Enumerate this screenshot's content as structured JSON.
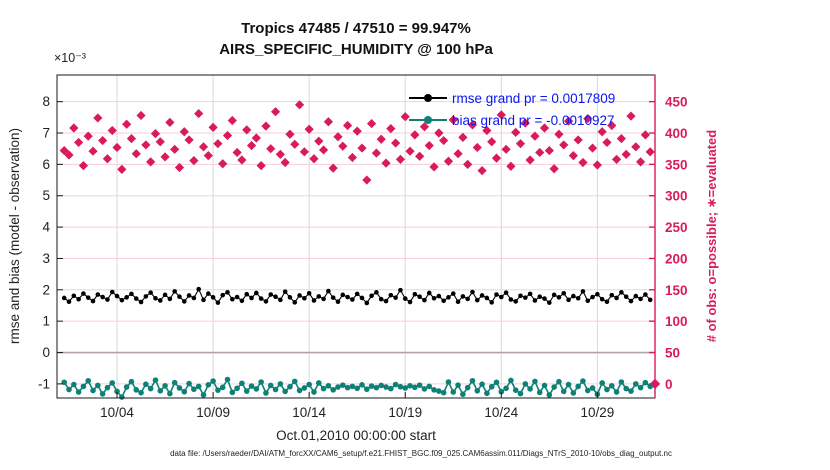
{
  "header": {
    "title_line1": "Tropics 47485 / 47510 = 99.947%",
    "title_line2": "AIRS_SPECIFIC_HUMIDITY @ 100 hPa"
  },
  "footer": {
    "data_file": "data file: /Users/raeder/DAI/ATM_forcXX/CAM6_setup/f.e21.FHIST_BGC.f09_025.CAM6assim.011/Diags_NTrS_2010-10/obs_diag_output.nc"
  },
  "chart_data": {
    "type": "line+scatter dual-axis time evolution",
    "title": "Tropics 47485 / 47510 = 99.947%",
    "subtitle": "AIRS_SPECIFIC_HUMIDITY @ 100 hPa",
    "x_axis": {
      "label": "Oct.01,2010 00:00:00 start",
      "range_days": [
        -0.125,
        31.0
      ],
      "tick_days": [
        3,
        8,
        13,
        18,
        23,
        28
      ],
      "tick_labels": [
        "10/04",
        "10/09",
        "10/14",
        "10/19",
        "10/24",
        "10/29"
      ],
      "grid": true
    },
    "y_left": {
      "label": "rmse and bias (model - observation)",
      "multiplier": "×10⁻³",
      "range": [
        -1.45,
        8.85
      ],
      "ticks": [
        -1,
        0,
        1,
        2,
        3,
        4,
        5,
        6,
        7,
        8
      ],
      "zero_line": true
    },
    "y_right": {
      "label": "# of obs: o=possible; ∗=evaluated",
      "ticks": [
        0,
        50,
        100,
        150,
        200,
        250,
        300,
        350,
        400,
        450
      ],
      "maps_to_left": "left_value = right_value/50 - 1"
    },
    "legend": {
      "position": "top-right-inside",
      "entries": [
        {
          "name": "rmse",
          "label": "rmse grand pr = 0.0017809",
          "color": "#000000",
          "marker": "dot-on-line"
        },
        {
          "name": "bias",
          "label": "bias grand pr = -0.0010927",
          "color": "#0e8177",
          "marker": "dot-on-line"
        }
      ]
    },
    "colors": {
      "rmse": "#000000",
      "bias": "#0e8177",
      "n_obs": "#d91b5c",
      "legend_text": "#0b16ee",
      "h_grid": "#f6cfdc",
      "v_grid": "#ddd6d9",
      "zero_line": "#b3a0a8",
      "box": "#1a1a1a"
    },
    "series": {
      "time_start_day": 0.25,
      "time_step_day": 0.25,
      "count": 123,
      "rmse_e3": [
        1.74,
        1.62,
        1.81,
        1.7,
        1.88,
        1.75,
        1.64,
        1.85,
        1.77,
        1.69,
        1.93,
        1.8,
        1.67,
        1.76,
        1.87,
        1.72,
        1.61,
        1.79,
        1.91,
        1.73,
        1.66,
        1.84,
        1.71,
        1.95,
        1.78,
        1.63,
        1.82,
        1.74,
        2.02,
        1.68,
        1.88,
        1.76,
        1.59,
        1.83,
        1.92,
        1.7,
        1.77,
        1.65,
        1.86,
        1.74,
        1.9,
        1.72,
        1.63,
        1.85,
        1.78,
        1.68,
        1.94,
        1.76,
        1.6,
        1.82,
        1.73,
        1.89,
        1.66,
        1.79,
        1.71,
        1.96,
        1.75,
        1.62,
        1.84,
        1.77,
        1.69,
        1.87,
        1.74,
        1.58,
        1.81,
        1.92,
        1.7,
        1.64,
        1.83,
        1.75,
        1.99,
        1.72,
        1.61,
        1.86,
        1.78,
        1.67,
        1.9,
        1.73,
        1.8,
        1.65,
        1.76,
        1.88,
        1.62,
        1.79,
        1.71,
        1.93,
        1.67,
        1.82,
        1.74,
        1.6,
        1.85,
        1.77,
        1.91,
        1.69,
        1.63,
        1.81,
        1.75,
        1.87,
        1.66,
        1.78,
        1.72,
        1.59,
        1.84,
        1.76,
        1.89,
        1.68,
        1.8,
        1.73,
        1.95,
        1.65,
        1.77,
        1.86,
        1.7,
        1.62,
        1.83,
        1.74,
        1.92,
        1.78,
        1.64,
        1.8,
        1.71,
        1.85,
        1.68
      ],
      "bias_e3": [
        -0.95,
        -1.18,
        -1.02,
        -1.26,
        -1.08,
        -0.9,
        -1.21,
        -1.05,
        -1.32,
        -1.12,
        -0.97,
        -1.24,
        -1.42,
        -1.1,
        -0.93,
        -1.19,
        -1.28,
        -1.01,
        -1.15,
        -0.88,
        -1.22,
        -1.06,
        -1.31,
        -0.96,
        -1.13,
        -1.25,
        -0.99,
        -1.17,
        -1.08,
        -1.35,
        -1.03,
        -0.91,
        -1.2,
        -1.11,
        -0.86,
        -1.27,
        -1.14,
        -0.98,
        -1.23,
        -1.07,
        -1.16,
        -0.94,
        -1.29,
        -1.05,
        -1.18,
        -1.0,
        -1.24,
        -1.09,
        -0.92,
        -1.21,
        -1.13,
        -1.02,
        -1.26,
        -0.97,
        -1.15,
        -1.06,
        -1.19,
        -1.1,
        -1.04,
        -1.12,
        -1.08,
        -1.14,
        -1.03,
        -1.17,
        -1.07,
        -1.12,
        -1.05,
        -1.1,
        -1.15,
        -1.02,
        -1.09,
        -1.13,
        -1.06,
        -1.11,
        -1.04,
        -1.16,
        -1.08,
        -1.19,
        -1.23,
        -1.28,
        -0.94,
        -1.26,
        -1.04,
        -1.33,
        -1.12,
        -0.9,
        -1.22,
        -1.01,
        -1.3,
        -1.09,
        -0.95,
        -1.25,
        -1.14,
        -0.89,
        -1.2,
        -1.31,
        -1.0,
        -1.16,
        -0.92,
        -1.27,
        -1.05,
        -1.35,
        -1.1,
        -0.93,
        -1.24,
        -1.02,
        -1.29,
        -1.08,
        -0.91,
        -1.21,
        -1.13,
        -1.33,
        -0.97,
        -1.18,
        -1.06,
        -1.26,
        -0.94,
        -1.15,
        -1.23,
        -1.0,
        -1.12,
        -0.96,
        -1.08
      ],
      "n_evaluated": [
        372,
        365,
        408,
        385,
        348,
        395,
        371,
        424,
        388,
        359,
        404,
        377,
        342,
        414,
        391,
        367,
        428,
        381,
        354,
        399,
        386,
        362,
        417,
        374,
        345,
        402,
        389,
        356,
        431,
        378,
        364,
        409,
        383,
        351,
        396,
        420,
        369,
        357,
        405,
        380,
        392,
        348,
        411,
        375,
        434,
        366,
        353,
        398,
        382,
        445,
        370,
        406,
        359,
        387,
        373,
        418,
        344,
        394,
        379,
        412,
        361,
        403,
        376,
        325,
        415,
        368,
        390,
        352,
        407,
        384,
        358,
        426,
        371,
        397,
        363,
        410,
        380,
        346,
        400,
        388,
        355,
        421,
        367,
        393,
        350,
        413,
        377,
        340,
        404,
        386,
        360,
        429,
        374,
        347,
        401,
        383,
        416,
        357,
        395,
        369,
        408,
        372,
        343,
        398,
        381,
        419,
        364,
        389,
        353,
        423,
        376,
        349,
        402,
        385,
        412,
        358,
        391,
        366,
        427,
        378,
        354,
        397,
        370
      ],
      "n_evaluated_terminal": {
        "day": 31.0,
        "value": 0
      }
    }
  }
}
